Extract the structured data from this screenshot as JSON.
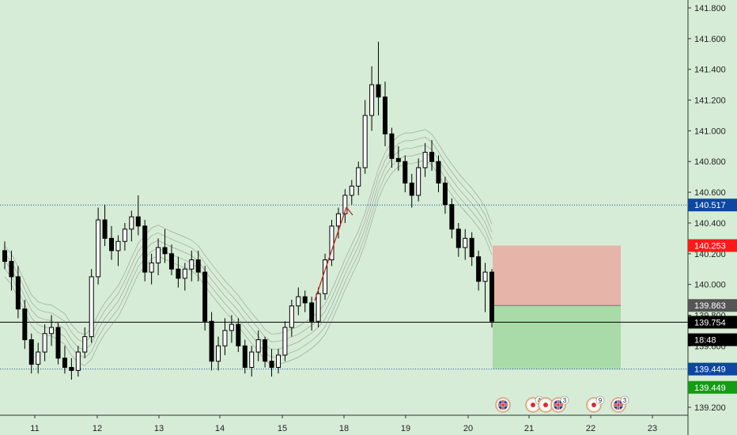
{
  "chart_data": {
    "type": "candlestick",
    "title": "",
    "ylim": [
      139.12,
      141.9
    ],
    "y_ticks": [
      "141.800",
      "141.600",
      "141.400",
      "141.200",
      "141.000",
      "140.800",
      "140.600",
      "140.400",
      "140.200",
      "140.000",
      "139.800",
      "139.600",
      "139.200"
    ],
    "x_ticks": [
      "11",
      "12",
      "13",
      "14",
      "15",
      "18",
      "19",
      "20",
      "21",
      "22",
      "23"
    ],
    "candles": [
      [
        140.22,
        140.28,
        140.1,
        140.15
      ],
      [
        140.15,
        140.22,
        139.96,
        140.05
      ],
      [
        140.05,
        140.12,
        139.78,
        139.84
      ],
      [
        139.84,
        139.9,
        139.58,
        139.64
      ],
      [
        139.64,
        139.68,
        139.42,
        139.48
      ],
      [
        139.48,
        139.62,
        139.42,
        139.56
      ],
      [
        139.56,
        139.74,
        139.5,
        139.68
      ],
      [
        139.68,
        139.8,
        139.6,
        139.72
      ],
      [
        139.72,
        139.75,
        139.48,
        139.52
      ],
      [
        139.52,
        139.6,
        139.42,
        139.46
      ],
      [
        139.46,
        139.52,
        139.38,
        139.44
      ],
      [
        139.44,
        139.6,
        139.4,
        139.56
      ],
      [
        139.56,
        139.72,
        139.52,
        139.66
      ],
      [
        139.66,
        140.1,
        139.62,
        140.05
      ],
      [
        140.05,
        140.5,
        140.0,
        140.42
      ],
      [
        140.42,
        140.52,
        140.25,
        140.3
      ],
      [
        140.3,
        140.38,
        140.16,
        140.22
      ],
      [
        140.22,
        140.32,
        140.12,
        140.28
      ],
      [
        140.28,
        140.4,
        140.22,
        140.36
      ],
      [
        140.36,
        140.48,
        140.28,
        140.44
      ],
      [
        140.44,
        140.58,
        140.32,
        140.38
      ],
      [
        140.38,
        140.42,
        140.02,
        140.08
      ],
      [
        140.08,
        140.2,
        140.0,
        140.14
      ],
      [
        140.14,
        140.3,
        140.06,
        140.24
      ],
      [
        140.24,
        140.36,
        140.14,
        140.2
      ],
      [
        140.2,
        140.26,
        140.06,
        140.1
      ],
      [
        140.1,
        140.18,
        139.98,
        140.04
      ],
      [
        140.04,
        140.14,
        139.96,
        140.1
      ],
      [
        140.1,
        140.22,
        140.02,
        140.16
      ],
      [
        140.16,
        140.22,
        140.02,
        140.08
      ],
      [
        140.08,
        140.12,
        139.7,
        139.76
      ],
      [
        139.76,
        139.82,
        139.44,
        139.5
      ],
      [
        139.5,
        139.66,
        139.44,
        139.6
      ],
      [
        139.6,
        139.78,
        139.54,
        139.7
      ],
      [
        139.7,
        139.8,
        139.62,
        139.74
      ],
      [
        139.74,
        139.78,
        139.56,
        139.6
      ],
      [
        139.6,
        139.64,
        139.42,
        139.46
      ],
      [
        139.46,
        139.6,
        139.4,
        139.56
      ],
      [
        139.56,
        139.7,
        139.5,
        139.64
      ],
      [
        139.64,
        139.66,
        139.46,
        139.5
      ],
      [
        139.5,
        139.58,
        139.4,
        139.46
      ],
      [
        139.46,
        139.58,
        139.42,
        139.54
      ],
      [
        139.54,
        139.76,
        139.5,
        139.72
      ],
      [
        139.72,
        139.9,
        139.66,
        139.86
      ],
      [
        139.86,
        139.98,
        139.8,
        139.92
      ],
      [
        139.92,
        139.96,
        139.82,
        139.88
      ],
      [
        139.88,
        139.92,
        139.7,
        139.76
      ],
      [
        139.76,
        139.98,
        139.72,
        139.94
      ],
      [
        139.94,
        140.2,
        139.9,
        140.16
      ],
      [
        140.16,
        140.42,
        140.12,
        140.38
      ],
      [
        140.38,
        140.5,
        140.3,
        140.46
      ],
      [
        140.46,
        140.62,
        140.4,
        140.58
      ],
      [
        140.58,
        140.68,
        140.52,
        140.64
      ],
      [
        140.64,
        140.8,
        140.58,
        140.76
      ],
      [
        140.76,
        141.2,
        140.72,
        141.1
      ],
      [
        141.1,
        141.42,
        141.0,
        141.3
      ],
      [
        141.3,
        141.58,
        141.1,
        141.22
      ],
      [
        141.22,
        141.32,
        140.9,
        140.98
      ],
      [
        140.98,
        141.02,
        140.76,
        140.82
      ],
      [
        140.82,
        140.9,
        140.74,
        140.8
      ],
      [
        140.8,
        140.84,
        140.6,
        140.66
      ],
      [
        140.66,
        140.72,
        140.5,
        140.58
      ],
      [
        140.58,
        140.82,
        140.54,
        140.76
      ],
      [
        140.76,
        140.92,
        140.7,
        140.86
      ],
      [
        140.86,
        140.94,
        140.74,
        140.8
      ],
      [
        140.8,
        140.84,
        140.6,
        140.66
      ],
      [
        140.66,
        140.7,
        140.46,
        140.52
      ],
      [
        140.52,
        140.56,
        140.3,
        140.36
      ],
      [
        140.36,
        140.4,
        140.18,
        140.24
      ],
      [
        140.24,
        140.36,
        140.16,
        140.3
      ],
      [
        140.3,
        140.34,
        140.12,
        140.18
      ],
      [
        140.18,
        140.22,
        139.96,
        140.02
      ],
      [
        140.02,
        140.14,
        139.82,
        140.08
      ],
      [
        140.08,
        140.1,
        139.72,
        139.76
      ]
    ],
    "h_levels": [
      {
        "value": 140.517,
        "label": "140.517",
        "color": "#0d47a1",
        "style": "dotted"
      },
      {
        "value": 139.754,
        "label": "139.754",
        "color": "#000000",
        "style": "solid"
      },
      {
        "value": 139.449,
        "label": "139.449",
        "color": "#0d47a1",
        "style": "dotted"
      }
    ],
    "price_tags": [
      {
        "label": "140.517",
        "value": 140.517,
        "color": "#0d47a1"
      },
      {
        "label": "140.253",
        "value": 140.253,
        "color": "#ff1a1a"
      },
      {
        "label": "139.863",
        "value": 139.863,
        "color": "#555555"
      },
      {
        "label": "139.754",
        "value": 139.754,
        "color": "#000000"
      },
      {
        "label": "18:48",
        "value": 139.64,
        "color": "#000000"
      },
      {
        "label": "139.449",
        "value": 139.449,
        "color": "#0d47a1"
      },
      {
        "label": "139.449",
        "value": 139.33,
        "color": "#159b15"
      }
    ],
    "position": {
      "stop": 140.253,
      "entry": 139.863,
      "target": 139.449,
      "risk_color": "#e6b4a8",
      "reward_color": "#a9dba9"
    },
    "events": [
      {
        "flag": "uk",
        "badge": ""
      },
      {
        "flag": "jp",
        "badge": "4"
      },
      {
        "flag": "jp",
        "badge": ""
      },
      {
        "flag": "uk",
        "badge": "3"
      },
      {
        "flag": "jp",
        "badge": "9"
      },
      {
        "flag": "uk",
        "badge": "3"
      }
    ],
    "colors": {
      "background": "#d6ecd6",
      "candle": "#000000",
      "ma": "#7a7a7a",
      "trend": "#c62828"
    }
  }
}
